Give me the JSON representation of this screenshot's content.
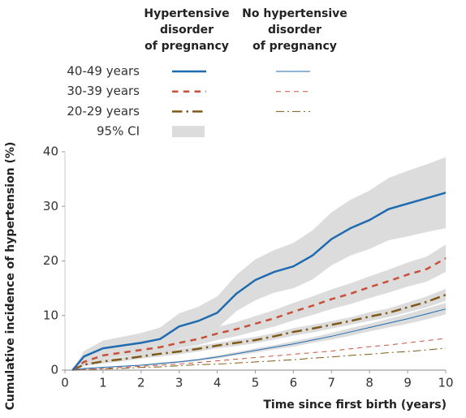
{
  "chart_data": {
    "type": "line",
    "legend": {
      "columns": [
        [
          "Hypertensive",
          "disorder",
          "of pregnancy"
        ],
        [
          "No hypertensive",
          "disorder",
          "of pregnancy"
        ]
      ],
      "rows": [
        "40-49 years",
        "30-39 years",
        "20-29 years",
        "95% CI"
      ]
    },
    "ci_color": "#dcdcdc",
    "xlabel": "Time since first birth (years)",
    "ylabel": "Cumulative incidence of hypertension (%)",
    "xlim": [
      0,
      10
    ],
    "xticks": [
      0,
      1,
      2,
      3,
      4,
      5,
      6,
      7,
      8,
      9,
      10
    ],
    "ylim": [
      0,
      40
    ],
    "yticks": [
      0,
      10,
      20,
      30,
      40
    ],
    "x": [
      0.2,
      0.5,
      1,
      1.5,
      2,
      2.5,
      3,
      3.5,
      4,
      4.5,
      5,
      5.5,
      6,
      6.5,
      7,
      7.5,
      8,
      8.5,
      9,
      9.5,
      10
    ],
    "series": [
      {
        "color": "#1f6bb0",
        "dash": "solid",
        "width": 2.5,
        "values": [
          0,
          2.5,
          4,
          4.5,
          5,
          5.7,
          8,
          9,
          10.5,
          14,
          16.5,
          18,
          19,
          21,
          24,
          26,
          27.5,
          29.5,
          30.5,
          31.5,
          32.5
        ],
        "ci_lower": [
          0,
          1.5,
          2.7,
          3,
          3.3,
          3.8,
          5.7,
          6.5,
          7.6,
          10.8,
          12.8,
          14.2,
          15,
          16.6,
          19.2,
          21,
          22.2,
          23.8,
          24.5,
          25.3,
          26
        ],
        "ci_upper": [
          0,
          3.5,
          5.4,
          6.1,
          6.8,
          7.8,
          10.4,
          11.6,
          13.5,
          17.4,
          20.3,
          22,
          23.3,
          25.6,
          28.9,
          31.2,
          32.9,
          35.2,
          36.5,
          37.7,
          39
        ]
      },
      {
        "color": "#c8503a",
        "dash": "dashed",
        "width": 2.5,
        "values": [
          0,
          1.5,
          2.7,
          3.2,
          3.7,
          4.2,
          5,
          5.7,
          6.7,
          7.5,
          8.5,
          9.5,
          10.7,
          11.8,
          13,
          14,
          15.2,
          16.3,
          17.5,
          18.5,
          20.5
        ],
        "ci_lower": [
          0,
          1,
          2,
          2.5,
          2.9,
          3.3,
          4,
          4.6,
          5.5,
          6.2,
          7.1,
          8,
          9.1,
          10.1,
          11.2,
          12.1,
          13.2,
          14.2,
          15.3,
          16.2,
          18
        ],
        "ci_upper": [
          0,
          2,
          3.4,
          3.9,
          4.5,
          5.1,
          6,
          6.8,
          7.9,
          8.8,
          9.9,
          11,
          12.3,
          13.5,
          14.8,
          15.9,
          17.2,
          18.4,
          19.7,
          20.8,
          23
        ]
      },
      {
        "color": "#7f5a17",
        "dash": "dashdot",
        "width": 2.5,
        "values": [
          0,
          1,
          1.6,
          2,
          2.5,
          3,
          3.4,
          3.9,
          4.5,
          5,
          5.5,
          6.2,
          7,
          7.6,
          8.3,
          9,
          9.8,
          10.5,
          11.5,
          12.5,
          13.8
        ],
        "ci_lower": [
          0,
          0.7,
          1.2,
          1.6,
          2.1,
          2.5,
          2.9,
          3.4,
          4,
          4.4,
          4.9,
          5.6,
          6.3,
          6.9,
          7.6,
          8.3,
          9,
          9.7,
          10.6,
          11.5,
          12.7
        ],
        "ci_upper": [
          0,
          1.3,
          2,
          2.4,
          2.9,
          3.5,
          3.9,
          4.4,
          5,
          5.6,
          6.1,
          6.8,
          7.7,
          8.3,
          9,
          9.7,
          10.6,
          11.3,
          12.4,
          13.5,
          14.9
        ]
      },
      {
        "color": "#1f6bb0",
        "dash": "solid",
        "width": 1,
        "values": [
          0,
          0.3,
          0.5,
          0.7,
          0.9,
          1.2,
          1.5,
          1.9,
          2.4,
          3,
          3.6,
          4.2,
          4.8,
          5.5,
          6.2,
          7,
          7.8,
          8.6,
          9.4,
          10.3,
          11.2
        ],
        "ci_lower": [
          0,
          0.2,
          0.4,
          0.6,
          0.8,
          1,
          1.3,
          1.7,
          2.1,
          2.7,
          3.2,
          3.8,
          4.3,
          5,
          5.6,
          6.3,
          7.1,
          7.8,
          8.5,
          9.3,
          10.2
        ],
        "ci_upper": [
          0,
          0.4,
          0.6,
          0.8,
          1,
          1.4,
          1.7,
          2.1,
          2.7,
          3.3,
          4,
          4.6,
          5.3,
          6,
          6.8,
          7.7,
          8.5,
          9.4,
          10.3,
          11.3,
          12.3
        ]
      },
      {
        "color": "#c8503a",
        "dash": "dashed",
        "width": 1,
        "values": [
          0,
          0.1,
          0.3,
          0.5,
          0.7,
          0.9,
          1.1,
          1.4,
          1.7,
          2,
          2.3,
          2.6,
          2.9,
          3.2,
          3.5,
          3.9,
          4.3,
          4.6,
          5,
          5.4,
          5.8
        ]
      },
      {
        "color": "#7f5a17",
        "dash": "dashdot",
        "width": 1,
        "values": [
          0,
          0.1,
          0.2,
          0.3,
          0.5,
          0.6,
          0.8,
          1,
          1.1,
          1.3,
          1.5,
          1.7,
          1.9,
          2.2,
          2.4,
          2.7,
          2.9,
          3.2,
          3.4,
          3.7,
          4
        ]
      }
    ]
  }
}
